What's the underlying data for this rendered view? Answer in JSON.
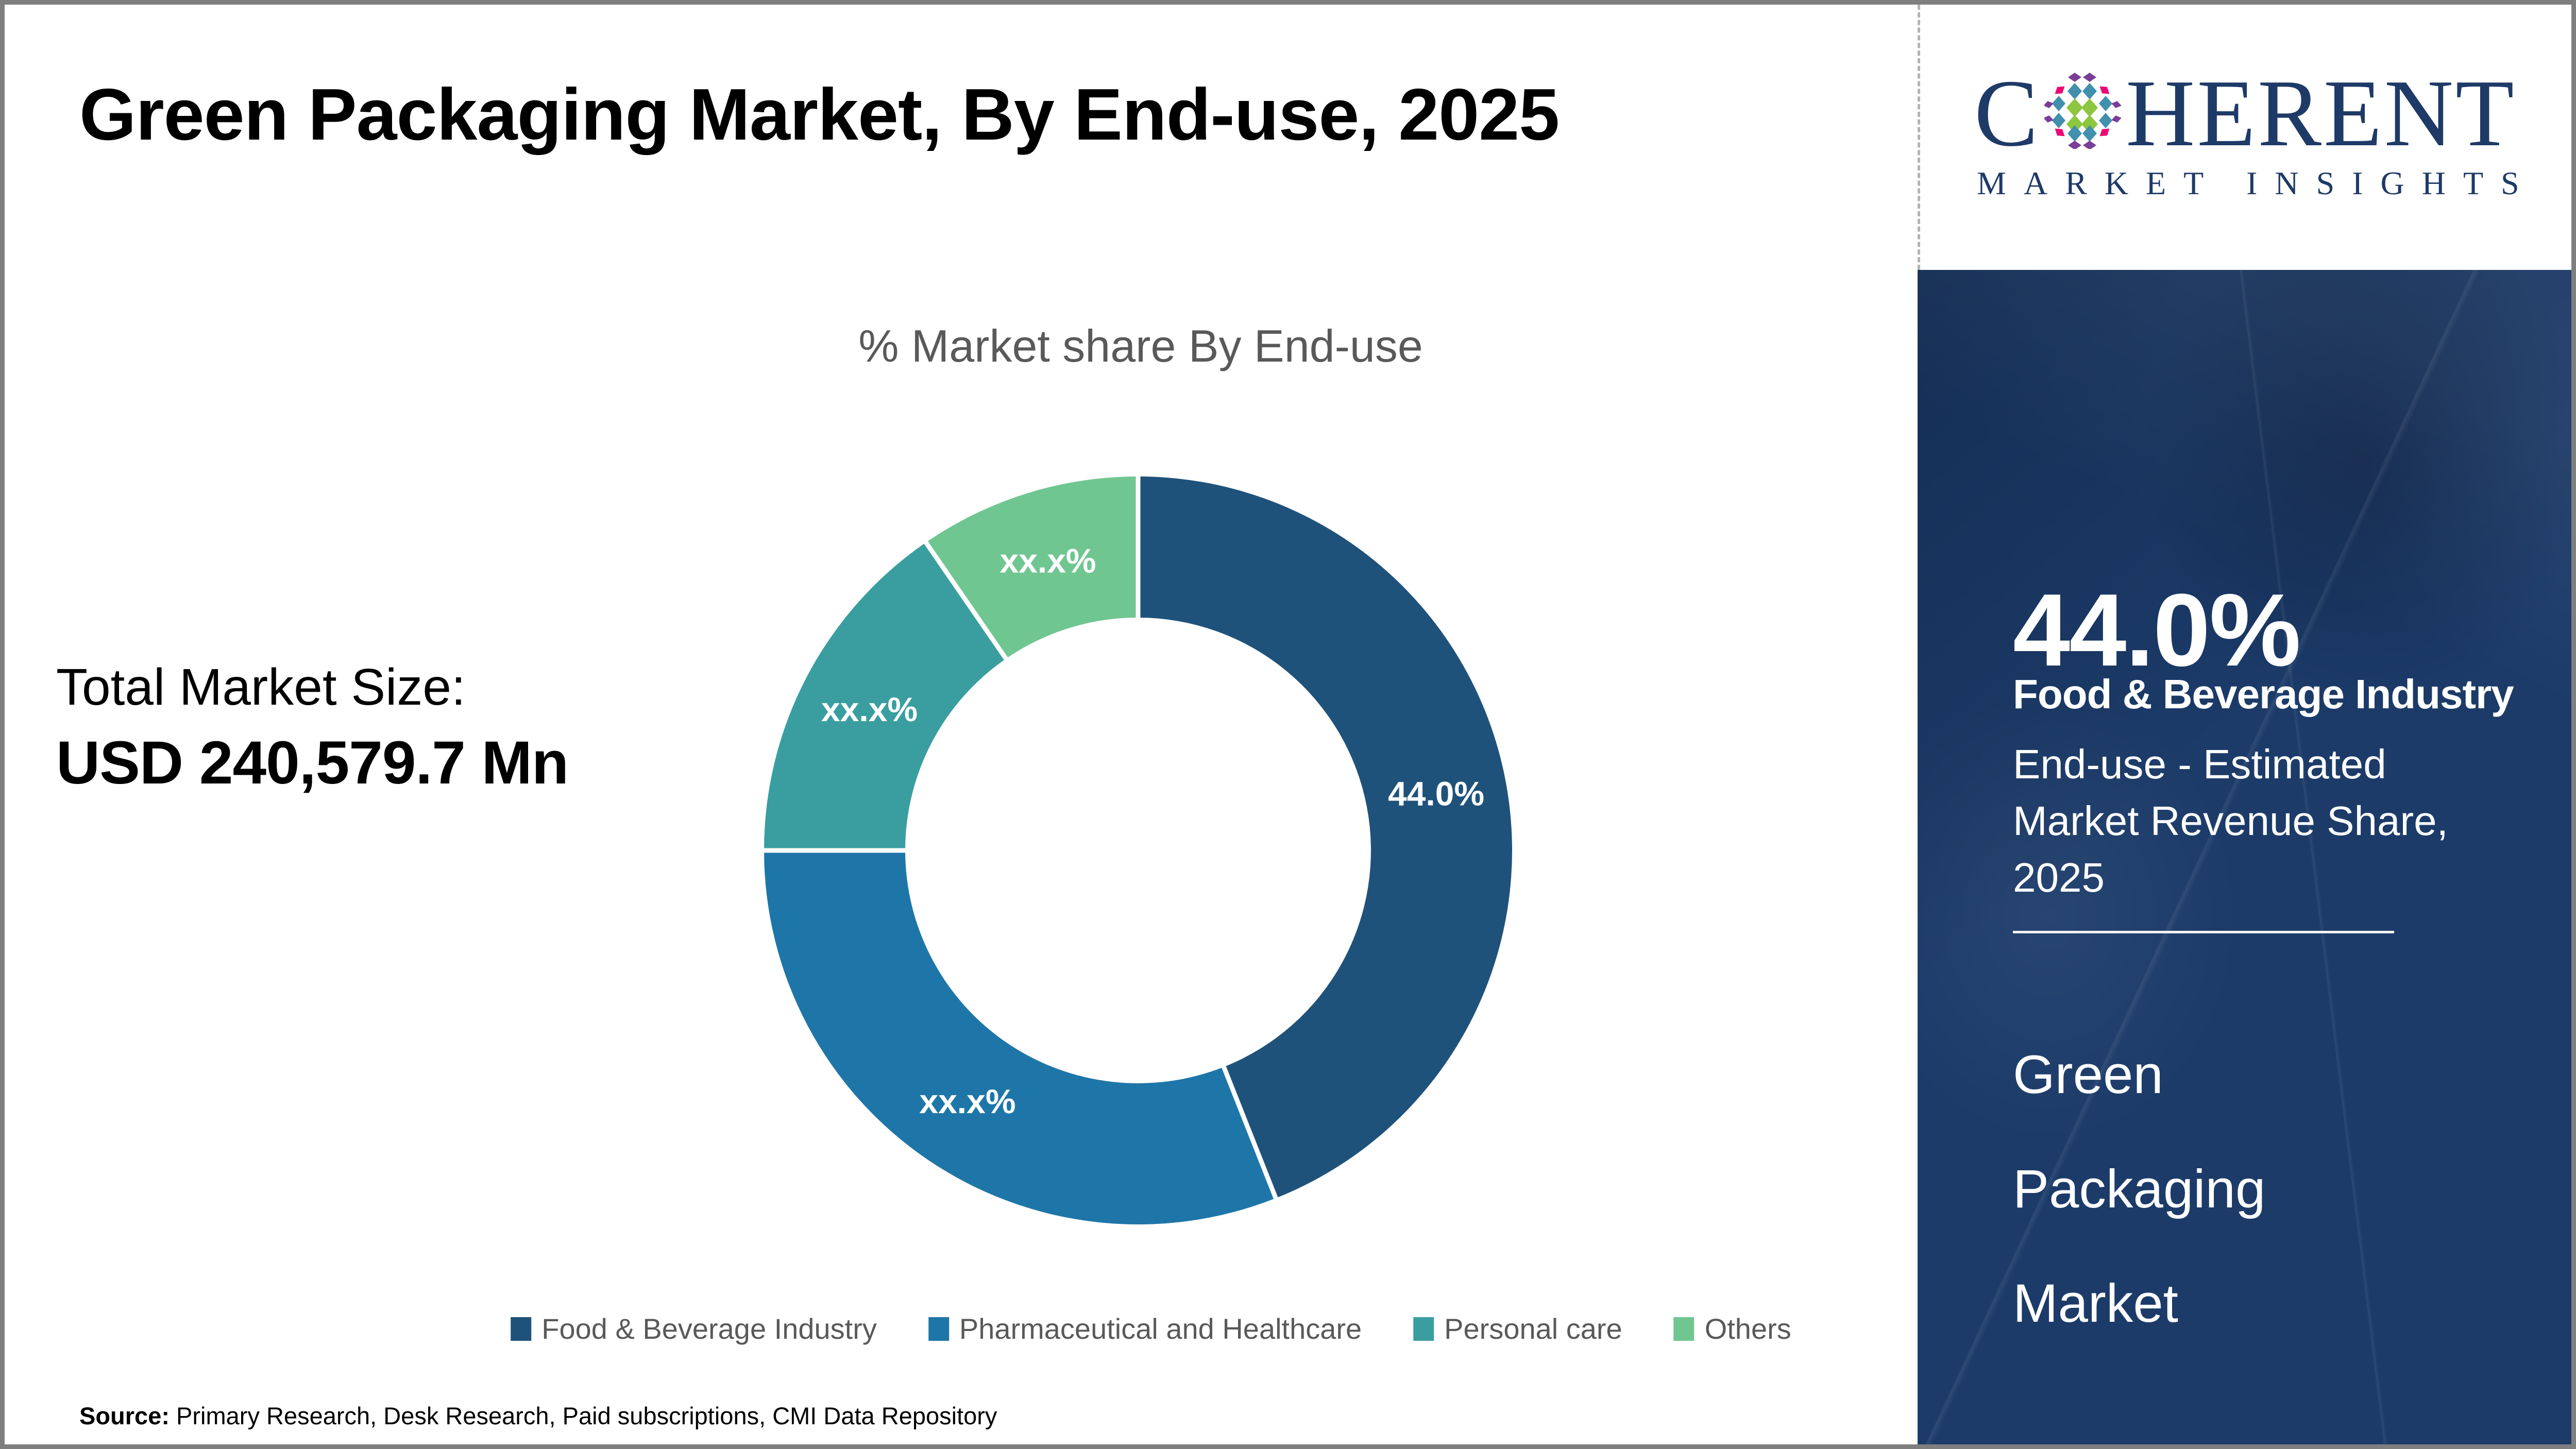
{
  "header": {
    "title": "Green Packaging Market, By End-use, 2025"
  },
  "logo": {
    "word_start": "C",
    "word_end": "HERENT",
    "subtitle": "MARKET INSIGHTS",
    "o_mark_colors": {
      "green": "#8DC63F",
      "blue": "#4190AE",
      "pink": "#ED0973",
      "purple": "#7A3E98"
    }
  },
  "total_market": {
    "label": "Total Market Size:",
    "value": "USD 240,579.7 Mn"
  },
  "chart_data": {
    "type": "pie",
    "subtype": "donut",
    "title": "% Market share By End-use",
    "legend_position": "bottom",
    "start_angle_deg": 0,
    "label_color": "#FFFFFF",
    "inner_radius_ratio": 0.62,
    "segments": [
      {
        "label": "Food & Beverage Industry",
        "value": 44.0,
        "display_label": "44.0%",
        "color": "#1F527B"
      },
      {
        "label": "Pharmaceutical and Healthcare",
        "value": 31.0,
        "display_label": "xx.x%",
        "color": "#1E76A8"
      },
      {
        "label": "Personal care",
        "value": 15.4,
        "display_label": "xx.x%",
        "color": "#3A9EA0"
      },
      {
        "label": "Others",
        "value": 9.6,
        "display_label": "xx.x%",
        "color": "#70C691"
      }
    ]
  },
  "sidebar": {
    "stat_value": "44.0%",
    "stat_label": "Food & Beverage Industry",
    "stat_sublabel": "End-use - Estimated Market Revenue Share, 2025",
    "market_name": "Green Packaging Market",
    "bg_color": "#1C3B69"
  },
  "source": {
    "prefix": "Source:",
    "text": " Primary Research, Desk Research, Paid subscriptions, CMI Data Repository"
  },
  "colors": {
    "text_gray": "#595959",
    "logo_navy": "#1E3A67",
    "border_gray": "#7F7F7F"
  }
}
